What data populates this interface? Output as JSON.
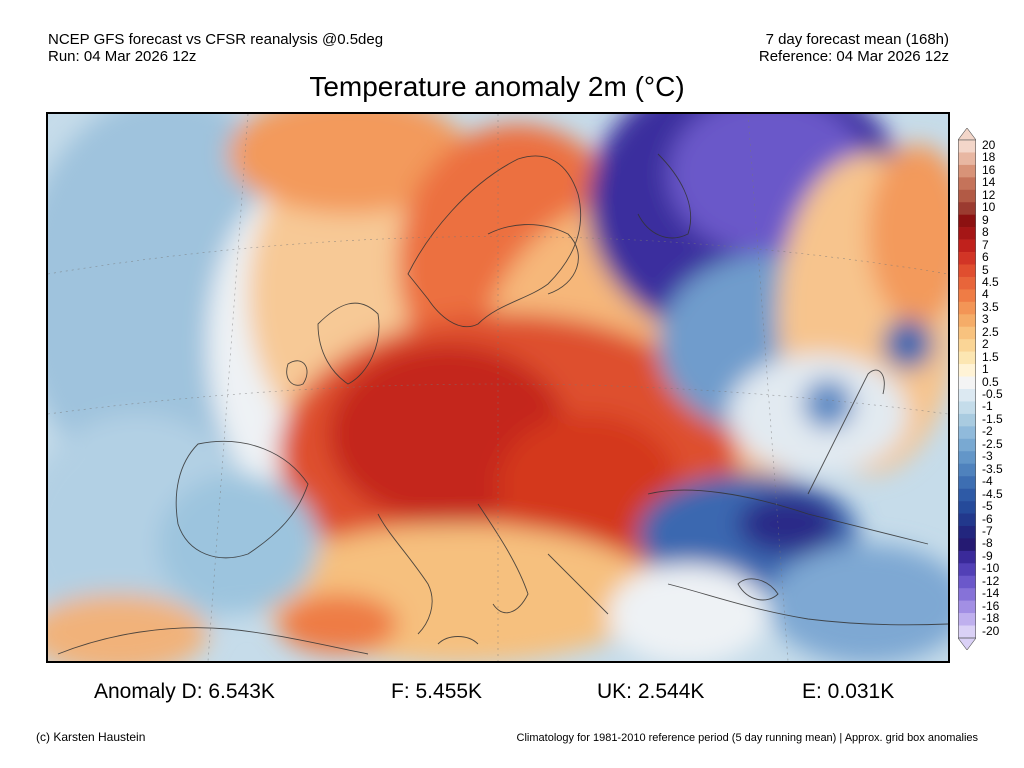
{
  "header": {
    "line1_left": "NCEP GFS forecast vs CFSR reanalysis @0.5deg",
    "line2_left": "Run: 04 Mar 2026 12z",
    "line1_right": "7 day forecast mean (168h)",
    "line2_right": "Reference: 04 Mar 2026 12z"
  },
  "title": "Temperature anomaly 2m (°C)",
  "colorbar": {
    "labels": [
      "20",
      "18",
      "16",
      "14",
      "12",
      "10",
      "9",
      "8",
      "7",
      "6",
      "5",
      "4.5",
      "4",
      "3.5",
      "3",
      "2.5",
      "2",
      "1.5",
      "1",
      "0.5",
      "-0.5",
      "-1",
      "-1.5",
      "-2",
      "-2.5",
      "-3",
      "-3.5",
      "-4",
      "-4.5",
      "-5",
      "-6",
      "-7",
      "-8",
      "-9",
      "-10",
      "-12",
      "-14",
      "-16",
      "-18",
      "-20"
    ],
    "colors": [
      "#f3d6c9",
      "#e8b7a2",
      "#d89378",
      "#c5735a",
      "#b25a45",
      "#9b3b30",
      "#8c1111",
      "#a51616",
      "#c0211c",
      "#d23526",
      "#e04e2f",
      "#e8653a",
      "#ef7c45",
      "#f39556",
      "#f5ac68",
      "#f8c27e",
      "#fad596",
      "#fce6b2",
      "#fff3d6",
      "#f4f4f4",
      "#dce9f2",
      "#c4dcea",
      "#a9cbe0",
      "#90badb",
      "#79a9d2",
      "#6396c8",
      "#4f82bd",
      "#3d6eb2",
      "#2e5aa6",
      "#254a9a",
      "#22388c",
      "#22267e",
      "#251a72",
      "#3a2a9a",
      "#5240b6",
      "#6b58ca",
      "#8672d8",
      "#a28fe4",
      "#bfb0ee",
      "#dad1f6"
    ]
  },
  "stats": [
    {
      "label": "Anomaly D: 6.543K"
    },
    {
      "label": "F: 5.455K"
    },
    {
      "label": "UK: 2.544K"
    },
    {
      "label": "E: 0.031K"
    }
  ],
  "footer": {
    "left": "(c) Karsten Haustein",
    "right": "Climatology for 1981-2010 reference period (5 day running mean) | Approx. grid box anomalies"
  }
}
